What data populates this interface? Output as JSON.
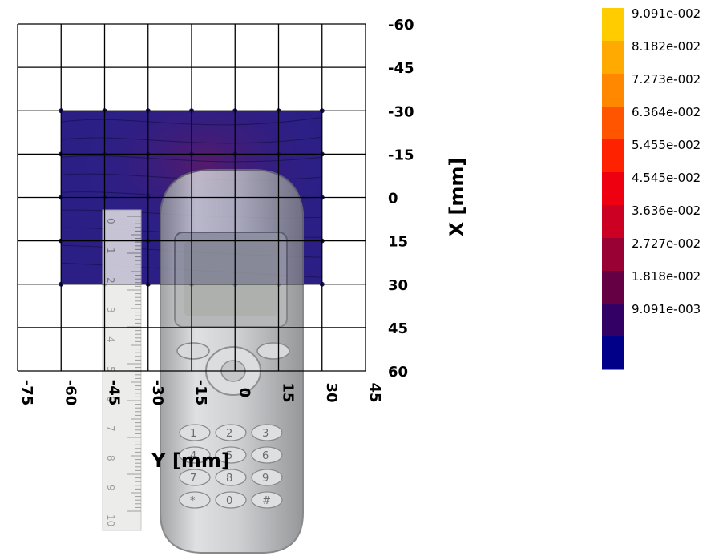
{
  "chart_data": {
    "type": "heatmap",
    "xlabel": "Y [mm]",
    "ylabel": "X [mm]",
    "x_ticks": [
      "-75",
      "-60",
      "-45",
      "-30",
      "-15",
      "0",
      "15",
      "30",
      "45"
    ],
    "y_ticks": [
      "-60",
      "-45",
      "-30",
      "-15",
      "0",
      "15",
      "30",
      "45",
      "60"
    ],
    "xlim": [
      -75,
      45
    ],
    "ylim": [
      -60,
      60
    ],
    "grid": true,
    "measurement_area": {
      "y_range": [
        -60,
        30
      ],
      "x_range": [
        -30,
        30
      ]
    },
    "colorbar": {
      "labels": [
        "9.091e-002",
        "8.182e-002",
        "7.273e-002",
        "6.364e-002",
        "5.455e-002",
        "4.545e-002",
        "3.636e-002",
        "2.727e-002",
        "1.818e-002",
        "9.091e-003"
      ],
      "colors": [
        "#ffcc00",
        "#ffaa00",
        "#ff8800",
        "#ff5500",
        "#ff2200",
        "#ee0011",
        "#cc0022",
        "#990033",
        "#660044",
        "#330066",
        "#000088"
      ]
    }
  },
  "colors": {
    "field_base": "#2b1f86",
    "field_hot": "#4a1a70",
    "grid_line": "#000000",
    "phone_body": "#b7b9bc"
  },
  "overlay": {
    "ruler_numbers": [
      "0",
      "1",
      "2",
      "3",
      "4",
      "5",
      "6",
      "7",
      "8",
      "9",
      "10"
    ],
    "keypad_keys": [
      "1",
      "2",
      "3",
      "4",
      "5",
      "6",
      "7",
      "8",
      "9",
      "*",
      "0",
      "#"
    ]
  }
}
